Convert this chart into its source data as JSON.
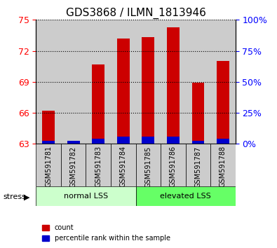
{
  "title": "GDS3868 / ILMN_1813946",
  "categories": [
    "GSM591781",
    "GSM591782",
    "GSM591783",
    "GSM591784",
    "GSM591785",
    "GSM591786",
    "GSM591787",
    "GSM591788"
  ],
  "red_values": [
    66.2,
    63.3,
    70.7,
    73.2,
    73.3,
    74.3,
    68.9,
    71.0
  ],
  "blue_values": [
    63.3,
    63.3,
    63.5,
    63.7,
    63.7,
    63.7,
    63.3,
    63.5
  ],
  "baseline": 63.0,
  "ylim": [
    63.0,
    75.0
  ],
  "yticks_left": [
    63,
    66,
    69,
    72,
    75
  ],
  "yticks_right": [
    0,
    25,
    50,
    75,
    100
  ],
  "yticks_right_pos": [
    63.0,
    66.0,
    69.0,
    72.0,
    75.0
  ],
  "group1_label": "normal LSS",
  "group2_label": "elevated LSS",
  "stress_label": "stress",
  "legend_red": "count",
  "legend_blue": "percentile rank within the sample",
  "bar_width": 0.5,
  "red_color": "#cc0000",
  "blue_color": "#0000cc",
  "group1_bg": "#ccffcc",
  "group2_bg": "#66ff66",
  "bar_bg": "#cccccc",
  "title_fontsize": 11,
  "tick_fontsize": 9,
  "label_fontsize": 8
}
